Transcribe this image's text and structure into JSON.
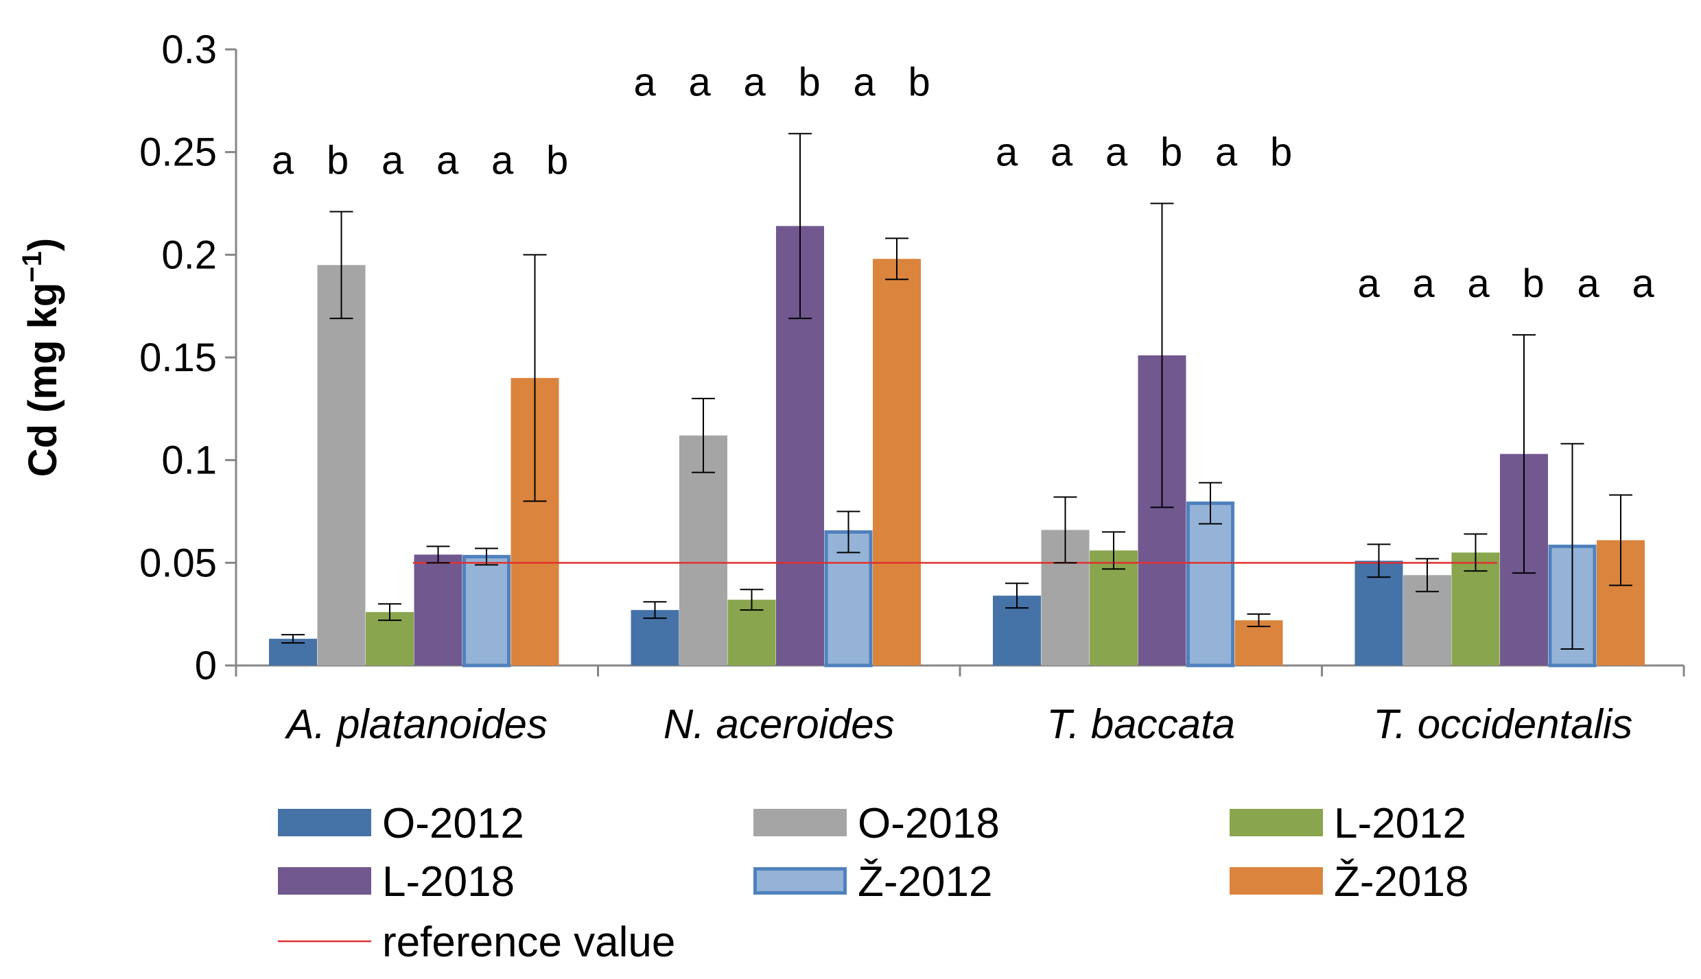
{
  "chart_data": {
    "type": "bar",
    "title": "",
    "ylabel": "Cd (mg kg",
    "ylabel_superscript": "−1",
    "ylabel_close": ")",
    "xlabel": "",
    "ylim": [
      0,
      0.3
    ],
    "yticks": [
      "0",
      "0.05",
      "0.1",
      "0.15",
      "0.2",
      "0.25",
      "0.3"
    ],
    "categories": [
      "A. platanoides",
      "N. aceroides",
      "T. baccata",
      "T. occidentalis"
    ],
    "series": [
      {
        "name": "O-2012",
        "color": "#4572A7",
        "stroke": "#4572A7",
        "values": [
          0.013,
          0.027,
          0.034,
          0.051
        ],
        "err_low": [
          0.011,
          0.023,
          0.028,
          0.043
        ],
        "err_high": [
          0.015,
          0.031,
          0.04,
          0.059
        ]
      },
      {
        "name": "O-2018",
        "color": "#A5A5A5",
        "stroke": "#A5A5A5",
        "values": [
          0.195,
          0.112,
          0.066,
          0.044
        ],
        "err_low": [
          0.169,
          0.094,
          0.05,
          0.036
        ],
        "err_high": [
          0.221,
          0.13,
          0.082,
          0.052
        ]
      },
      {
        "name": "L-2012",
        "color": "#89A54E",
        "stroke": "#89A54E",
        "values": [
          0.026,
          0.032,
          0.056,
          0.055
        ],
        "err_low": [
          0.022,
          0.027,
          0.047,
          0.046
        ],
        "err_high": [
          0.03,
          0.037,
          0.065,
          0.064
        ]
      },
      {
        "name": "L-2018",
        "color": "#71588F",
        "stroke": "#71588F",
        "values": [
          0.054,
          0.214,
          0.151,
          0.103
        ],
        "err_low": [
          0.05,
          0.169,
          0.077,
          0.045
        ],
        "err_high": [
          0.058,
          0.259,
          0.225,
          0.161
        ]
      },
      {
        "name": "Ž-2012",
        "color": "#95B3D7",
        "stroke": "#4F81BD",
        "values": [
          0.053,
          0.065,
          0.079,
          0.058
        ],
        "err_low": [
          0.049,
          0.055,
          0.069,
          0.008
        ],
        "err_high": [
          0.057,
          0.075,
          0.089,
          0.108
        ]
      },
      {
        "name": "Ž-2018",
        "color": "#DB843D",
        "stroke": "#DB843D",
        "values": [
          0.14,
          0.198,
          0.022,
          0.061
        ],
        "err_low": [
          0.08,
          0.188,
          0.019,
          0.039
        ],
        "err_high": [
          0.2,
          0.208,
          0.025,
          0.083
        ]
      }
    ],
    "significance_letters": [
      [
        "a",
        "b",
        "a",
        "a",
        "a",
        "b"
      ],
      [
        "a",
        "a",
        "a",
        "b",
        "a",
        "b"
      ],
      [
        "a",
        "a",
        "a",
        "b",
        "a",
        "b"
      ],
      [
        "a",
        "a",
        "a",
        "b",
        "a",
        "a"
      ]
    ],
    "reference_line": {
      "name": "reference value",
      "value": 0.05,
      "color": "#E03030"
    },
    "legend_position": "bottom"
  }
}
